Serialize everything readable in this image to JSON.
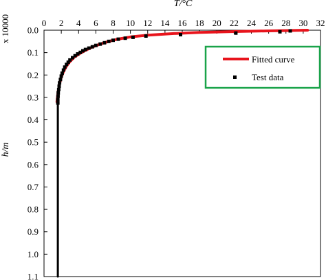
{
  "chart_data": {
    "type": "line",
    "title": "",
    "xlabel": "T/°C",
    "ylabel": "h/m",
    "y_multiplier": "x 10000",
    "x_axis_position": "top",
    "y_axis_inverted": true,
    "xlim": [
      0,
      32
    ],
    "ylim": [
      0,
      1.1
    ],
    "x_ticks": [
      0,
      2,
      4,
      6,
      8,
      10,
      12,
      14,
      16,
      18,
      20,
      22,
      24,
      26,
      28,
      30,
      32
    ],
    "y_ticks": [
      0.0,
      0.1,
      0.2,
      0.3,
      0.4,
      0.5,
      0.6,
      0.7,
      0.8,
      0.9,
      1.0,
      1.1
    ],
    "y_tick_labels": [
      "0.0",
      "0.1",
      "0.2",
      "0.3",
      "0.4",
      "0.5",
      "0.6",
      "0.7",
      "0.8",
      "0.9",
      "1.0",
      "1.1"
    ],
    "grid": false,
    "legend_position": "top-right",
    "series": [
      {
        "name": "Fitted curve",
        "kind": "line",
        "color": "#e8141c",
        "points": [
          [
            30.5,
            0.0
          ],
          [
            26,
            0.003
          ],
          [
            22,
            0.006
          ],
          [
            18,
            0.01
          ],
          [
            15,
            0.015
          ],
          [
            12,
            0.022
          ],
          [
            10,
            0.03
          ],
          [
            8.5,
            0.04
          ],
          [
            7.5,
            0.05
          ],
          [
            6.5,
            0.062
          ],
          [
            5.6,
            0.075
          ],
          [
            4.8,
            0.09
          ],
          [
            4.1,
            0.105
          ],
          [
            3.5,
            0.12
          ],
          [
            3.0,
            0.14
          ],
          [
            2.6,
            0.16
          ],
          [
            2.25,
            0.185
          ],
          [
            2.0,
            0.21
          ],
          [
            1.8,
            0.24
          ],
          [
            1.65,
            0.27
          ],
          [
            1.55,
            0.3
          ],
          [
            1.5,
            0.32
          ]
        ]
      },
      {
        "name": "Test data",
        "kind": "scatter",
        "color": "#000000",
        "points": [
          [
            28.5,
            0.003
          ],
          [
            27.3,
            0.007
          ],
          [
            22.2,
            0.013
          ],
          [
            15.8,
            0.02
          ],
          [
            11.8,
            0.026
          ],
          [
            10.3,
            0.032
          ],
          [
            9.4,
            0.036
          ],
          [
            8.6,
            0.04
          ],
          [
            8.0,
            0.045
          ],
          [
            7.5,
            0.05
          ],
          [
            7.0,
            0.056
          ],
          [
            6.5,
            0.062
          ],
          [
            6.0,
            0.068
          ],
          [
            5.6,
            0.074
          ],
          [
            5.2,
            0.08
          ],
          [
            4.8,
            0.086
          ],
          [
            4.5,
            0.092
          ],
          [
            4.2,
            0.099
          ],
          [
            3.9,
            0.106
          ],
          [
            3.6,
            0.114
          ],
          [
            3.3,
            0.123
          ],
          [
            3.0,
            0.133
          ],
          [
            2.8,
            0.143
          ],
          [
            2.6,
            0.153
          ],
          [
            2.4,
            0.165
          ],
          [
            2.25,
            0.178
          ],
          [
            2.1,
            0.192
          ],
          [
            2.0,
            0.205
          ],
          [
            1.9,
            0.22
          ],
          [
            1.8,
            0.235
          ],
          [
            1.75,
            0.25
          ],
          [
            1.7,
            0.265
          ],
          [
            1.65,
            0.28
          ],
          [
            1.62,
            0.295
          ],
          [
            1.6,
            0.31
          ],
          [
            1.6,
            0.325
          ]
        ]
      },
      {
        "name": "",
        "kind": "line",
        "color": "#000000",
        "points": [
          [
            1.6,
            0.32
          ],
          [
            1.6,
            1.1
          ]
        ]
      }
    ]
  }
}
